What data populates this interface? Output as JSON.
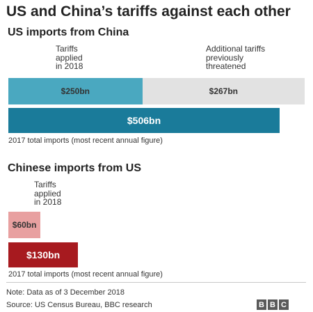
{
  "title": "US and China’s tariffs against each other",
  "source": "Source: US Census Bureau, BBC research",
  "note": "Note: Data as of 3 December 2018",
  "logo": {
    "letters": [
      "B",
      "B",
      "C"
    ]
  },
  "colors": {
    "us_applied": "#4aa8c0",
    "us_threatened": "#e2e2e2",
    "us_total": "#1a7b9a",
    "cn_applied": "#e8a0a0",
    "cn_total": "#a71a1f"
  },
  "chart_data": [
    {
      "type": "bar",
      "orientation": "horizontal",
      "title": "US imports from China",
      "unit": "$bn",
      "xlim": [
        0,
        506
      ],
      "annotations": {
        "applied": "Tariffs\napplied\nin 2018",
        "threatened": "Additional tariffs\npreviously\nthreatened"
      },
      "stacked_row": {
        "segments": [
          {
            "key": "applied",
            "value": 250,
            "label": "$250bn"
          },
          {
            "key": "threatened",
            "value": 267,
            "label": "$267bn"
          }
        ]
      },
      "total_row": {
        "value": 506,
        "label": "$506bn"
      },
      "caption": "2017 total imports (most recent annual figure)"
    },
    {
      "type": "bar",
      "orientation": "horizontal",
      "title": "Chinese imports from US",
      "unit": "$bn",
      "xlim": [
        0,
        506
      ],
      "annotations": {
        "applied": "Tariffs\napplied\nin 2018"
      },
      "stacked_row": {
        "segments": [
          {
            "key": "applied",
            "value": 60,
            "label": "$60bn"
          }
        ]
      },
      "total_row": {
        "value": 130,
        "label": "$130bn"
      },
      "caption": "2017 total imports (most recent annual figure)"
    }
  ]
}
